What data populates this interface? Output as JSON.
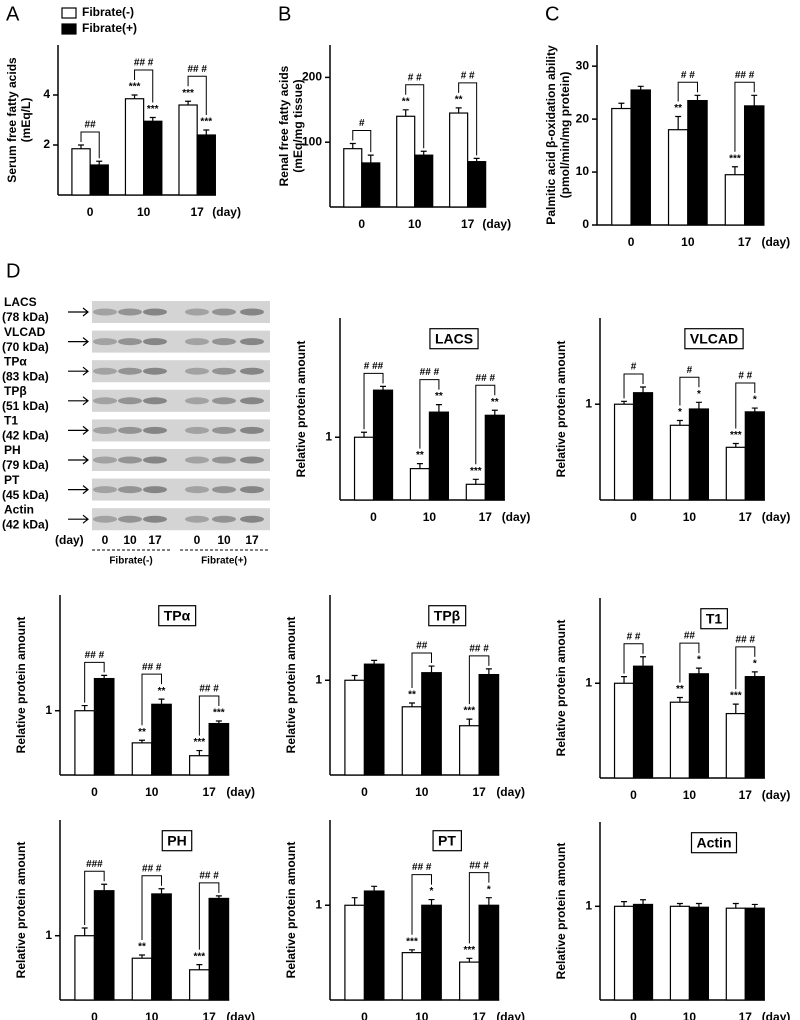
{
  "chart_data": [
    {
      "type": "bar",
      "panel": "A",
      "ylabel": [
        "Serum free fatty acids",
        "(mEq/L)"
      ],
      "categories": [
        "0",
        "10",
        "17"
      ],
      "xunit": "(day)",
      "ylim": [
        0,
        6
      ],
      "yticks": [
        2,
        4
      ],
      "series": [
        {
          "name": "Fibrate(-)",
          "color": "#ffffff",
          "values": [
            1.85,
            3.85,
            3.6
          ],
          "errors": [
            0.15,
            0.15,
            0.15
          ],
          "stars": [
            null,
            "***",
            "***"
          ]
        },
        {
          "name": "Fibrate(+)",
          "color": "#000000",
          "values": [
            1.2,
            2.95,
            2.4
          ],
          "errors": [
            0.15,
            0.15,
            0.2
          ],
          "stars": [
            null,
            "***",
            "***"
          ]
        }
      ],
      "brackets": [
        "##",
        "## #",
        "## #"
      ]
    },
    {
      "type": "bar",
      "panel": "B",
      "ylabel": [
        "Renal free fatty acids",
        "(mEq/mg tissue)"
      ],
      "categories": [
        "0",
        "10",
        "17"
      ],
      "xunit": "(day)",
      "ylim": [
        0,
        250
      ],
      "yticks": [
        100,
        200
      ],
      "series": [
        {
          "color": "#ffffff",
          "values": [
            90,
            140,
            145
          ],
          "errors": [
            8,
            10,
            8
          ],
          "stars": [
            null,
            "**",
            "**"
          ]
        },
        {
          "color": "#000000",
          "values": [
            68,
            80,
            70
          ],
          "errors": [
            12,
            6,
            5
          ],
          "stars": [
            null,
            null,
            null
          ]
        }
      ],
      "brackets": [
        "#",
        "# #",
        "# #"
      ]
    },
    {
      "type": "bar",
      "panel": "C",
      "ylabel": [
        "Palmitic acid β-oxidation ability",
        "(pmol/min/mg protein)"
      ],
      "categories": [
        "0",
        "10",
        "17"
      ],
      "xunit": "(day)",
      "ylim": [
        0,
        34
      ],
      "yticks": [
        0,
        10,
        20,
        30
      ],
      "series": [
        {
          "color": "#ffffff",
          "values": [
            22,
            18,
            9.5
          ],
          "errors": [
            1,
            2.5,
            1.5
          ],
          "stars": [
            null,
            "**",
            "***"
          ]
        },
        {
          "color": "#000000",
          "values": [
            25.5,
            23.5,
            22.5
          ],
          "errors": [
            0.7,
            1,
            2
          ],
          "stars": [
            null,
            null,
            null
          ]
        }
      ],
      "brackets": [
        null,
        "# #",
        "## #"
      ]
    },
    {
      "type": "bar",
      "title": "LACS",
      "ylabel": [
        "Relative protein amount"
      ],
      "categories": [
        "0",
        "10",
        "17"
      ],
      "xunit": "(day)",
      "ylim": [
        0,
        2.9
      ],
      "yticks": [
        1
      ],
      "series": [
        {
          "color": "#ffffff",
          "values": [
            1.0,
            0.5,
            0.25
          ],
          "errors": [
            0.08,
            0.08,
            0.08
          ],
          "stars": [
            null,
            "**",
            "***"
          ]
        },
        {
          "color": "#000000",
          "values": [
            1.75,
            1.4,
            1.35
          ],
          "errors": [
            0.06,
            0.12,
            0.08
          ],
          "stars": [
            null,
            "**",
            "**"
          ]
        }
      ],
      "brackets": [
        "# ##",
        "## #",
        "## #"
      ]
    },
    {
      "type": "bar",
      "title": "VLCAD",
      "ylabel": [
        "Relative protein amount"
      ],
      "categories": [
        "0",
        "10",
        "17"
      ],
      "xunit": "(day)",
      "ylim": [
        0,
        1.9
      ],
      "yticks": [
        1
      ],
      "series": [
        {
          "color": "#ffffff",
          "values": [
            1.0,
            0.78,
            0.55
          ],
          "errors": [
            0.03,
            0.05,
            0.04
          ],
          "stars": [
            null,
            "*",
            "***"
          ]
        },
        {
          "color": "#000000",
          "values": [
            1.12,
            0.95,
            0.92
          ],
          "errors": [
            0.06,
            0.07,
            0.04
          ],
          "stars": [
            null,
            "*",
            "*"
          ]
        }
      ],
      "brackets": [
        "#",
        "#",
        "# #"
      ]
    },
    {
      "type": "bar",
      "title": "TPα",
      "ylabel": [
        "Relative protein amount"
      ],
      "categories": [
        "0",
        "10",
        "17"
      ],
      "xunit": "(day)",
      "ylim": [
        0,
        2.8
      ],
      "yticks": [
        1
      ],
      "series": [
        {
          "color": "#ffffff",
          "values": [
            1.0,
            0.5,
            0.3
          ],
          "errors": [
            0.08,
            0.04,
            0.08
          ],
          "stars": [
            null,
            "**",
            "***"
          ]
        },
        {
          "color": "#000000",
          "values": [
            1.5,
            1.1,
            0.8
          ],
          "errors": [
            0.05,
            0.08,
            0.04
          ],
          "stars": [
            null,
            "**",
            "***"
          ]
        }
      ],
      "brackets": [
        "## #",
        "## #",
        "## #"
      ]
    },
    {
      "type": "bar",
      "title": "TPβ",
      "ylabel": [
        "Relative protein amount"
      ],
      "categories": [
        "0",
        "10",
        "17"
      ],
      "xunit": "(day)",
      "ylim": [
        0,
        1.9
      ],
      "yticks": [
        1
      ],
      "series": [
        {
          "color": "#ffffff",
          "values": [
            1.0,
            0.72,
            0.52
          ],
          "errors": [
            0.05,
            0.04,
            0.07
          ],
          "stars": [
            null,
            "**",
            "***"
          ]
        },
        {
          "color": "#000000",
          "values": [
            1.17,
            1.08,
            1.06
          ],
          "errors": [
            0.04,
            0.07,
            0.06
          ],
          "stars": [
            null,
            null,
            null
          ]
        }
      ],
      "brackets": [
        null,
        "##",
        "## #"
      ]
    },
    {
      "type": "bar",
      "title": "T1",
      "ylabel": [
        "Relative protein amount"
      ],
      "categories": [
        "0",
        "10",
        "17"
      ],
      "xunit": "(day)",
      "ylim": [
        0,
        1.9
      ],
      "yticks": [
        1
      ],
      "series": [
        {
          "color": "#ffffff",
          "values": [
            1.0,
            0.8,
            0.68
          ],
          "errors": [
            0.07,
            0.05,
            0.1
          ],
          "stars": [
            null,
            "**",
            "***"
          ]
        },
        {
          "color": "#000000",
          "values": [
            1.18,
            1.1,
            1.07
          ],
          "errors": [
            0.1,
            0.06,
            0.05
          ],
          "stars": [
            null,
            "*",
            "*"
          ]
        }
      ],
      "brackets": [
        "# #",
        "##",
        "## #"
      ]
    },
    {
      "type": "bar",
      "title": "PH",
      "ylabel": [
        "Relative protein amount"
      ],
      "categories": [
        "0",
        "10",
        "17"
      ],
      "xunit": "(day)",
      "ylim": [
        0,
        2.8
      ],
      "yticks": [
        1
      ],
      "series": [
        {
          "color": "#ffffff",
          "values": [
            1.0,
            0.65,
            0.47
          ],
          "errors": [
            0.12,
            0.05,
            0.08
          ],
          "stars": [
            null,
            "**",
            "***"
          ]
        },
        {
          "color": "#000000",
          "values": [
            1.7,
            1.65,
            1.58
          ],
          "errors": [
            0.1,
            0.08,
            0.04
          ],
          "stars": [
            null,
            null,
            null
          ]
        }
      ],
      "brackets": [
        "###",
        "## #",
        "## #"
      ]
    },
    {
      "type": "bar",
      "title": "PT",
      "ylabel": [
        "Relative protein amount"
      ],
      "categories": [
        "0",
        "10",
        "17"
      ],
      "xunit": "(day)",
      "ylim": [
        0,
        1.9
      ],
      "yticks": [
        1
      ],
      "series": [
        {
          "color": "#ffffff",
          "values": [
            1.0,
            0.5,
            0.4
          ],
          "errors": [
            0.08,
            0.03,
            0.04
          ],
          "stars": [
            null,
            "***",
            "***"
          ]
        },
        {
          "color": "#000000",
          "values": [
            1.15,
            1.0,
            1.0
          ],
          "errors": [
            0.05,
            0.06,
            0.08
          ],
          "stars": [
            null,
            "*",
            "*"
          ]
        }
      ],
      "brackets": [
        null,
        "## #",
        "## #"
      ]
    },
    {
      "type": "bar",
      "title": "Actin",
      "ylabel": [
        "Relative protein amount"
      ],
      "categories": [
        "0",
        "10",
        "17"
      ],
      "xunit": "(day)",
      "ylim": [
        0,
        1.9
      ],
      "yticks": [
        1
      ],
      "series": [
        {
          "color": "#ffffff",
          "values": [
            1.0,
            1.0,
            0.98
          ],
          "errors": [
            0.05,
            0.03,
            0.05
          ],
          "stars": [
            null,
            null,
            null
          ]
        },
        {
          "color": "#000000",
          "values": [
            1.02,
            0.99,
            0.98
          ],
          "errors": [
            0.05,
            0.04,
            0.04
          ],
          "stars": [
            null,
            null,
            null
          ]
        }
      ],
      "brackets": [
        null,
        null,
        null
      ]
    }
  ],
  "blot": {
    "panel": "D",
    "proteins": [
      {
        "name": "LACS",
        "size": "(78 kDa)"
      },
      {
        "name": "VLCAD",
        "size": "(70 kDa)"
      },
      {
        "name": "TPα",
        "size": "(83 kDa)"
      },
      {
        "name": "TPβ",
        "size": "(51 kDa)"
      },
      {
        "name": "T1",
        "size": "(42 kDa)"
      },
      {
        "name": "PH",
        "size": "(79 kDa)"
      },
      {
        "name": "PT",
        "size": "(45 kDa)"
      },
      {
        "name": "Actin",
        "size": "(42 kDa)"
      }
    ],
    "day_label": "(day)",
    "days": [
      "0",
      "10",
      "17",
      "0",
      "10",
      "17"
    ],
    "groups": [
      "Fibrate(-)",
      "Fibrate(+)"
    ]
  }
}
